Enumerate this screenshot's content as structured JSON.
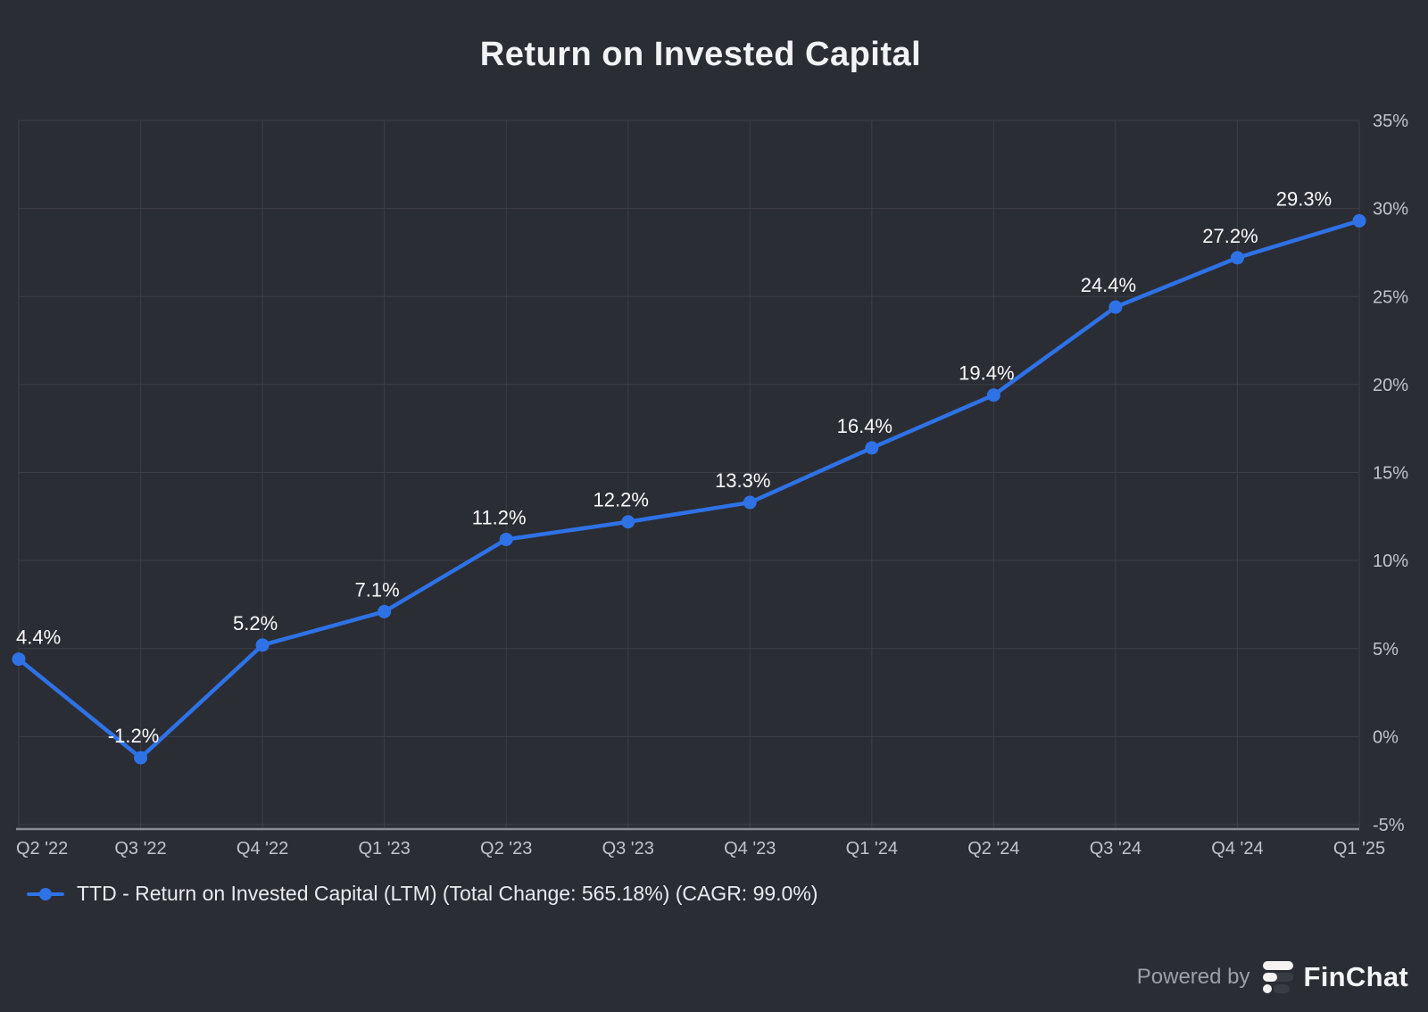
{
  "title": "Return on Invested Capital",
  "legend": {
    "label": "TTD - Return on Invested Capital (LTM) (Total Change: 565.18%) (CAGR: 99.0%)"
  },
  "footer": {
    "powered_by": "Powered by",
    "brand": "FinChat"
  },
  "colors": {
    "background": "#2b2d35",
    "line": "#2e72e6",
    "marker": "#2e72e6",
    "grid": "#3d3f48",
    "axis_line": "#8a8c92",
    "axis_label": "#c2c4c9",
    "data_label": "#fafafa"
  },
  "chart_data": {
    "type": "line",
    "title": "Return on Invested Capital",
    "categories": [
      "Q2 '22",
      "Q3 '22",
      "Q4 '22",
      "Q1 '23",
      "Q2 '23",
      "Q3 '23",
      "Q4 '23",
      "Q1 '24",
      "Q2 '24",
      "Q3 '24",
      "Q4 '24",
      "Q1 '25"
    ],
    "series": [
      {
        "name": "TTD - Return on Invested Capital (LTM)",
        "values": [
          4.4,
          -1.2,
          5.2,
          7.1,
          11.2,
          12.2,
          13.3,
          16.4,
          19.4,
          24.4,
          27.2,
          29.3
        ]
      }
    ],
    "data_labels": [
      "4.4%",
      "-1.2%",
      "5.2%",
      "7.1%",
      "11.2%",
      "12.2%",
      "13.3%",
      "16.4%",
      "19.4%",
      "24.4%",
      "27.2%",
      "29.3%"
    ],
    "total_change": "565.18%",
    "cagr": "99.0%",
    "ticker": "TTD",
    "y_ticks": [
      "35%",
      "30%",
      "25%",
      "20%",
      "15%",
      "10%",
      "5%",
      "0%",
      "-5%"
    ],
    "y_tick_values": [
      35,
      30,
      25,
      20,
      15,
      10,
      5,
      0,
      -5
    ],
    "ylim": [
      -5,
      35
    ],
    "xlabel": "",
    "ylabel": "",
    "grid": true,
    "y_axis_side": "right",
    "legend_position": "bottom-left"
  }
}
